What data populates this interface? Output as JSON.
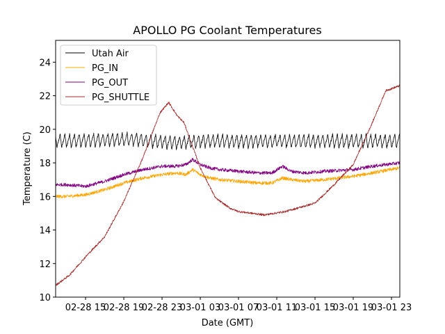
{
  "chart_data": {
    "type": "line",
    "title": "APOLLO PG Coolant Temperatures",
    "xlabel": "Date (GMT)",
    "ylabel": "Temperature (C)",
    "x_units": "hours since 02-28 00:00 GMT",
    "xlim": [
      11.87,
      47.87
    ],
    "ylim": [
      10,
      25.3
    ],
    "grid": false,
    "legend_position": "top-left",
    "x_ticks": [
      {
        "value": 15,
        "label": "02-28 15"
      },
      {
        "value": 19,
        "label": "02-28 19"
      },
      {
        "value": 23,
        "label": "02-28 23"
      },
      {
        "value": 27,
        "label": "03-01 03"
      },
      {
        "value": 31,
        "label": "03-01 07"
      },
      {
        "value": 35,
        "label": "03-01 11"
      },
      {
        "value": 39,
        "label": "03-01 15"
      },
      {
        "value": 43,
        "label": "03-01 19"
      },
      {
        "value": 47,
        "label": "03-01 23"
      }
    ],
    "y_ticks": [
      10,
      12,
      14,
      16,
      18,
      20,
      22,
      24
    ],
    "series": [
      {
        "name": "Utah Air",
        "color": "#000000",
        "style": "oscillating",
        "mean": 19.3,
        "amplitude": 0.4,
        "period_hours": 0.5,
        "x": [
          11.87,
          20,
          24,
          28,
          36,
          44,
          47.87
        ],
        "y": [
          19.3,
          19.4,
          19.2,
          19.3,
          19.3,
          19.3,
          19.3
        ]
      },
      {
        "name": "PG_IN",
        "color": "#ffa500",
        "x": [
          11.87,
          13,
          15,
          17,
          19,
          21,
          23,
          24.5,
          25.5,
          26.2,
          27,
          28,
          29,
          31,
          33,
          34.5,
          35.6,
          36.5,
          38,
          40,
          43,
          45,
          47.87
        ],
        "y": [
          16.0,
          16.0,
          16.1,
          16.4,
          16.8,
          17.1,
          17.3,
          17.4,
          17.3,
          17.6,
          17.3,
          17.1,
          17.0,
          16.9,
          16.8,
          16.8,
          17.1,
          17.0,
          16.9,
          17.0,
          17.2,
          17.4,
          17.7
        ]
      },
      {
        "name": "PG_OUT",
        "color": "#800080",
        "x": [
          11.87,
          13,
          15,
          17,
          19,
          21,
          23,
          24.5,
          25.5,
          26.2,
          27,
          28,
          29,
          31,
          33,
          34.5,
          35.6,
          36.5,
          38,
          40,
          43,
          45,
          47.87
        ],
        "y": [
          16.7,
          16.7,
          16.6,
          16.9,
          17.3,
          17.6,
          17.8,
          17.8,
          17.9,
          18.2,
          17.9,
          17.7,
          17.6,
          17.5,
          17.4,
          17.4,
          17.8,
          17.5,
          17.4,
          17.5,
          17.6,
          17.8,
          18.0
        ]
      },
      {
        "name": "PG_SHUTTLE",
        "color": "#a52a2a",
        "x": [
          11.87,
          13.3,
          15,
          17,
          19,
          21,
          22.8,
          23.7,
          24.6,
          25.3,
          27,
          28.6,
          30.1,
          31,
          33.7,
          35.9,
          39,
          41,
          43,
          45,
          46.4,
          47.87
        ],
        "y": [
          10.7,
          11.3,
          12.4,
          13.6,
          15.7,
          18.3,
          21.0,
          21.6,
          20.8,
          20.4,
          17.7,
          15.9,
          15.3,
          15.1,
          14.9,
          15.1,
          15.6,
          16.7,
          17.9,
          20.4,
          22.3,
          22.6
        ]
      }
    ]
  }
}
